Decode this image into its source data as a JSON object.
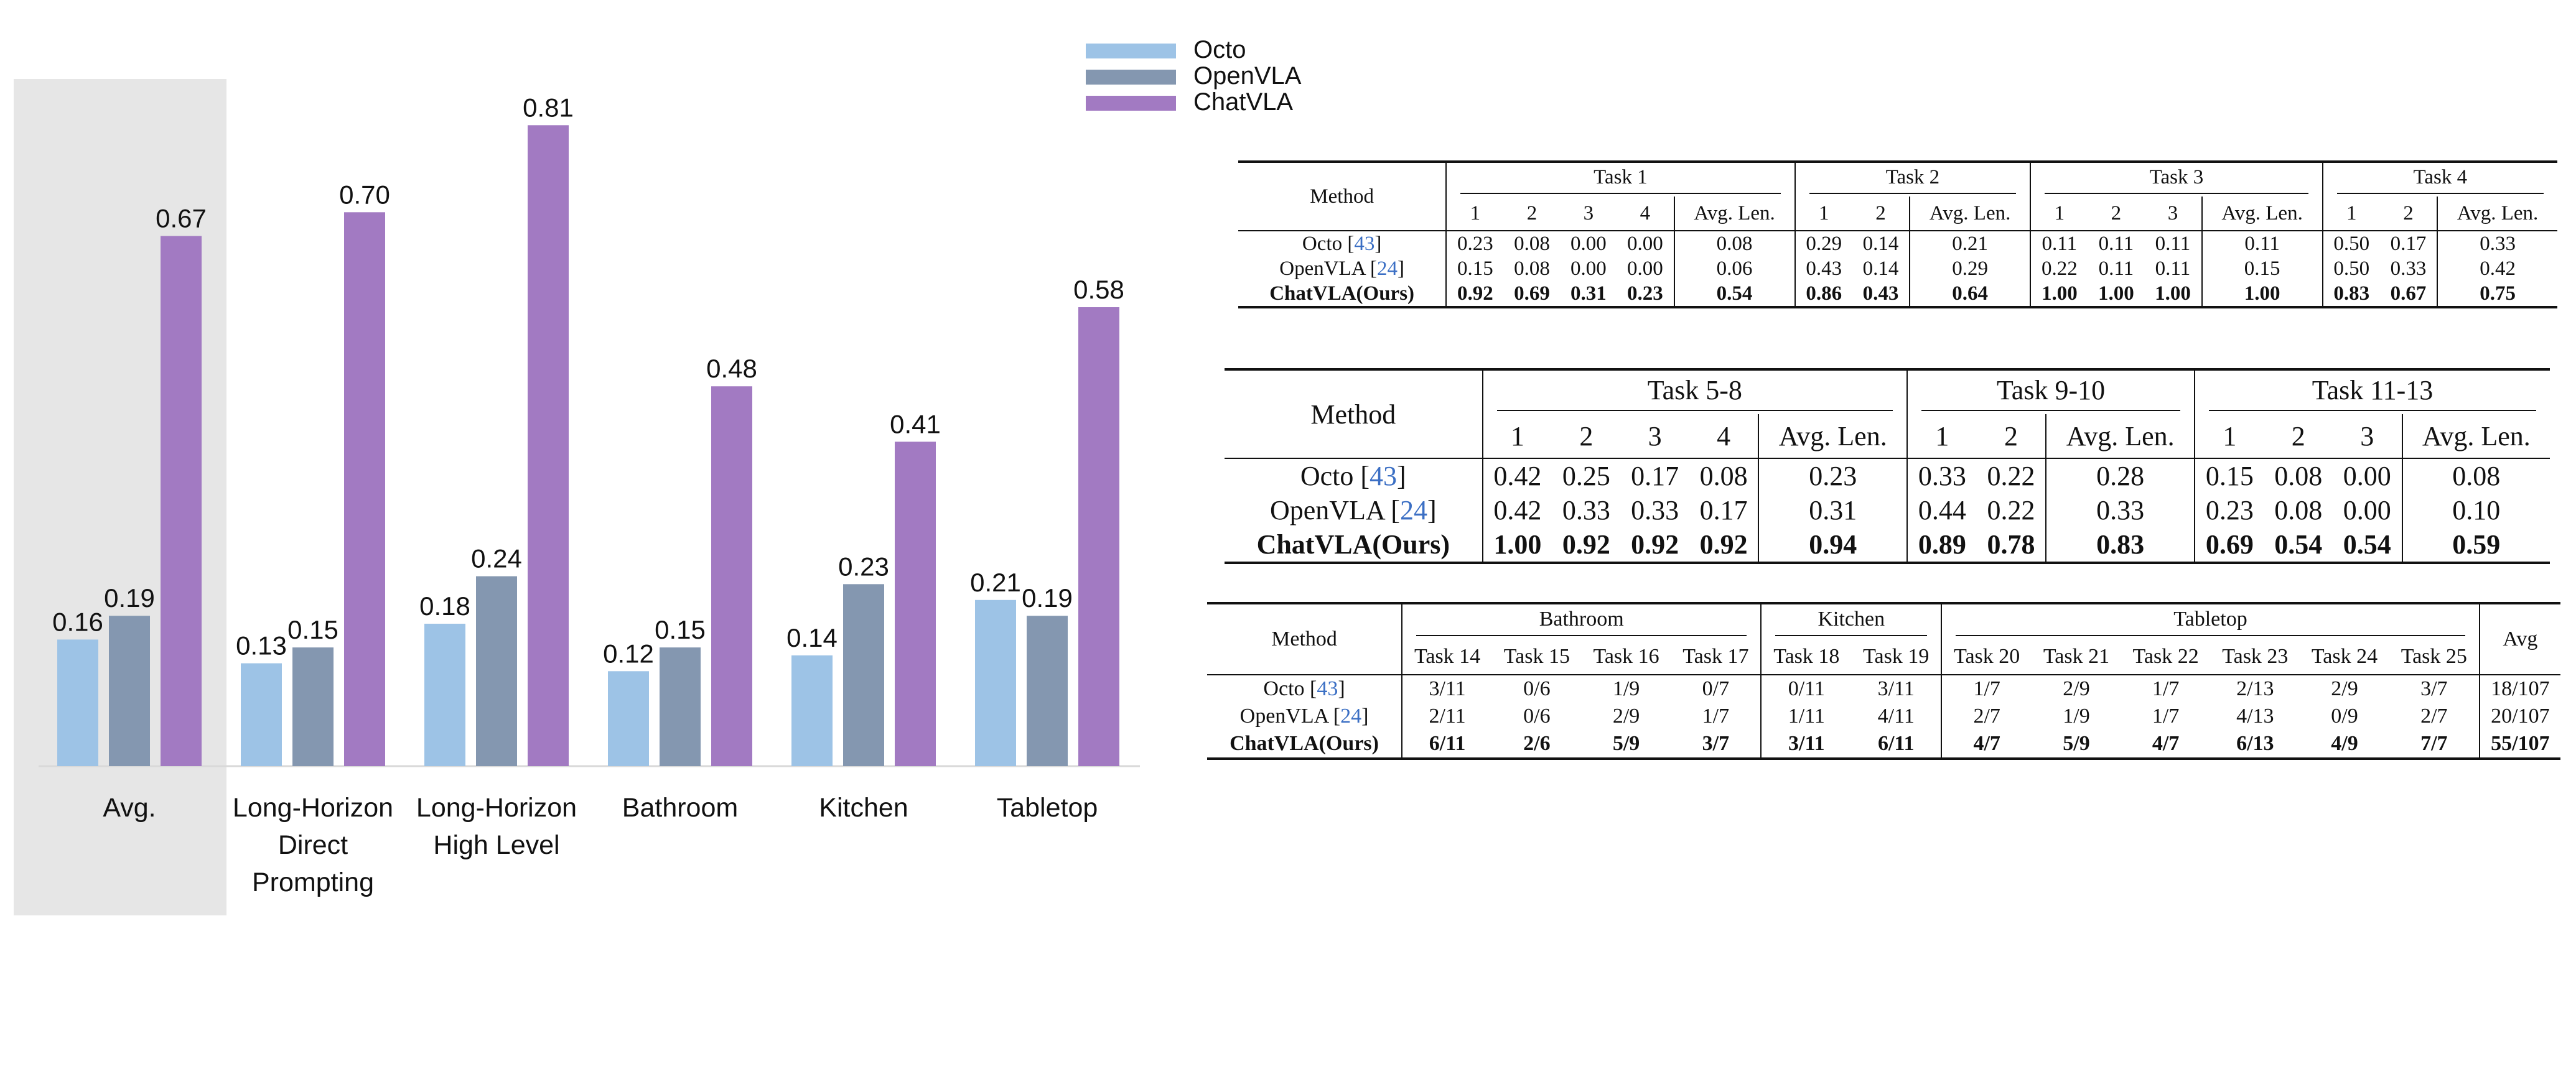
{
  "chart_data": {
    "type": "bar",
    "categories": [
      "Avg.",
      "Long-Horizon\nDirect\nPrompting",
      "Long-Horizon\nHigh Level",
      "Bathroom",
      "Kitchen",
      "Tabletop"
    ],
    "series": [
      {
        "name": "Octo",
        "values": [
          0.16,
          0.13,
          0.18,
          0.12,
          0.14,
          0.21
        ]
      },
      {
        "name": "OpenVLA",
        "values": [
          0.19,
          0.15,
          0.24,
          0.15,
          0.23,
          0.19
        ]
      },
      {
        "name": "ChatVLA",
        "values": [
          0.67,
          0.7,
          0.81,
          0.48,
          0.41,
          0.58
        ]
      }
    ],
    "value_labels": [
      [
        "0.16",
        "0.13",
        "0.18",
        "0.12",
        "0.14",
        "0.21"
      ],
      [
        "0.19",
        "0.15",
        "0.24",
        "0.15",
        "0.23",
        "0.19"
      ],
      [
        "0.67",
        "0.70",
        "0.81",
        "0.48",
        "0.41",
        "0.58"
      ]
    ],
    "colors": [
      "#9dc3e6",
      "#8497b0",
      "#a27ac2"
    ],
    "highlight_category": "Avg.",
    "highlight_color": "#e6e6e6",
    "ylim": [
      0,
      0.85
    ],
    "grid": false,
    "legend_placement": "top-center"
  },
  "tables": {
    "t1": {
      "method_header": "Method",
      "groups": [
        {
          "label": "Task 1",
          "cols": [
            "1",
            "2",
            "3",
            "4",
            "Avg. Len."
          ]
        },
        {
          "label": "Task 2",
          "cols": [
            "1",
            "2",
            "Avg. Len."
          ]
        },
        {
          "label": "Task 3",
          "cols": [
            "1",
            "2",
            "3",
            "Avg. Len."
          ]
        },
        {
          "label": "Task 4",
          "cols": [
            "1",
            "2",
            "Avg. Len."
          ]
        }
      ],
      "rows": [
        {
          "name": "Octo",
          "ref": "43",
          "cells": [
            "0.23",
            "0.08",
            "0.00",
            "0.00",
            "0.08",
            "0.29",
            "0.14",
            "0.21",
            "0.11",
            "0.11",
            "0.11",
            "0.11",
            "0.50",
            "0.17",
            "0.33"
          ]
        },
        {
          "name": "OpenVLA",
          "ref": "24",
          "cells": [
            "0.15",
            "0.08",
            "0.00",
            "0.00",
            "0.06",
            "0.43",
            "0.14",
            "0.29",
            "0.22",
            "0.11",
            "0.11",
            "0.15",
            "0.50",
            "0.33",
            "0.42"
          ]
        },
        {
          "name": "ChatVLA(Ours)",
          "ref": "",
          "bold": true,
          "cells": [
            "0.92",
            "0.69",
            "0.31",
            "0.23",
            "0.54",
            "0.86",
            "0.43",
            "0.64",
            "1.00",
            "1.00",
            "1.00",
            "1.00",
            "0.83",
            "0.67",
            "0.75"
          ]
        }
      ]
    },
    "t2": {
      "method_header": "Method",
      "groups": [
        {
          "label": "Task 5-8",
          "cols": [
            "1",
            "2",
            "3",
            "4",
            "Avg. Len."
          ]
        },
        {
          "label": "Task 9-10",
          "cols": [
            "1",
            "2",
            "Avg. Len."
          ]
        },
        {
          "label": "Task 11-13",
          "cols": [
            "1",
            "2",
            "3",
            "Avg. Len."
          ]
        }
      ],
      "rows": [
        {
          "name": "Octo",
          "ref": "43",
          "cells": [
            "0.42",
            "0.25",
            "0.17",
            "0.08",
            "0.23",
            "0.33",
            "0.22",
            "0.28",
            "0.15",
            "0.08",
            "0.00",
            "0.08"
          ]
        },
        {
          "name": "OpenVLA",
          "ref": "24",
          "cells": [
            "0.42",
            "0.33",
            "0.33",
            "0.17",
            "0.31",
            "0.44",
            "0.22",
            "0.33",
            "0.23",
            "0.08",
            "0.00",
            "0.10"
          ]
        },
        {
          "name": "ChatVLA(Ours)",
          "ref": "",
          "bold": true,
          "cells": [
            "1.00",
            "0.92",
            "0.92",
            "0.92",
            "0.94",
            "0.89",
            "0.78",
            "0.83",
            "0.69",
            "0.54",
            "0.54",
            "0.59"
          ]
        }
      ]
    },
    "t3": {
      "method_header": "Method",
      "avg_header": "Avg",
      "groups": [
        {
          "label": "Bathroom",
          "cols": [
            "Task 14",
            "Task 15",
            "Task 16",
            "Task 17"
          ]
        },
        {
          "label": "Kitchen",
          "cols": [
            "Task 18",
            "Task 19"
          ]
        },
        {
          "label": "Tabletop",
          "cols": [
            "Task 20",
            "Task 21",
            "Task 22",
            "Task 23",
            "Task 24",
            "Task 25"
          ]
        }
      ],
      "rows": [
        {
          "name": "Octo",
          "ref": "43",
          "cells": [
            "3/11",
            "0/6",
            "1/9",
            "0/7",
            "0/11",
            "3/11",
            "1/7",
            "2/9",
            "1/7",
            "2/13",
            "2/9",
            "3/7"
          ],
          "avg": "18/107"
        },
        {
          "name": "OpenVLA",
          "ref": "24",
          "cells": [
            "2/11",
            "0/6",
            "2/9",
            "1/7",
            "1/11",
            "4/11",
            "2/7",
            "1/9",
            "1/7",
            "4/13",
            "0/9",
            "2/7"
          ],
          "avg": "20/107"
        },
        {
          "name": "ChatVLA(Ours)",
          "ref": "",
          "bold": true,
          "cells": [
            "6/11",
            "2/6",
            "5/9",
            "3/7",
            "3/11",
            "6/11",
            "4/7",
            "5/9",
            "4/7",
            "6/13",
            "4/9",
            "7/7"
          ],
          "avg": "55/107"
        }
      ]
    }
  }
}
